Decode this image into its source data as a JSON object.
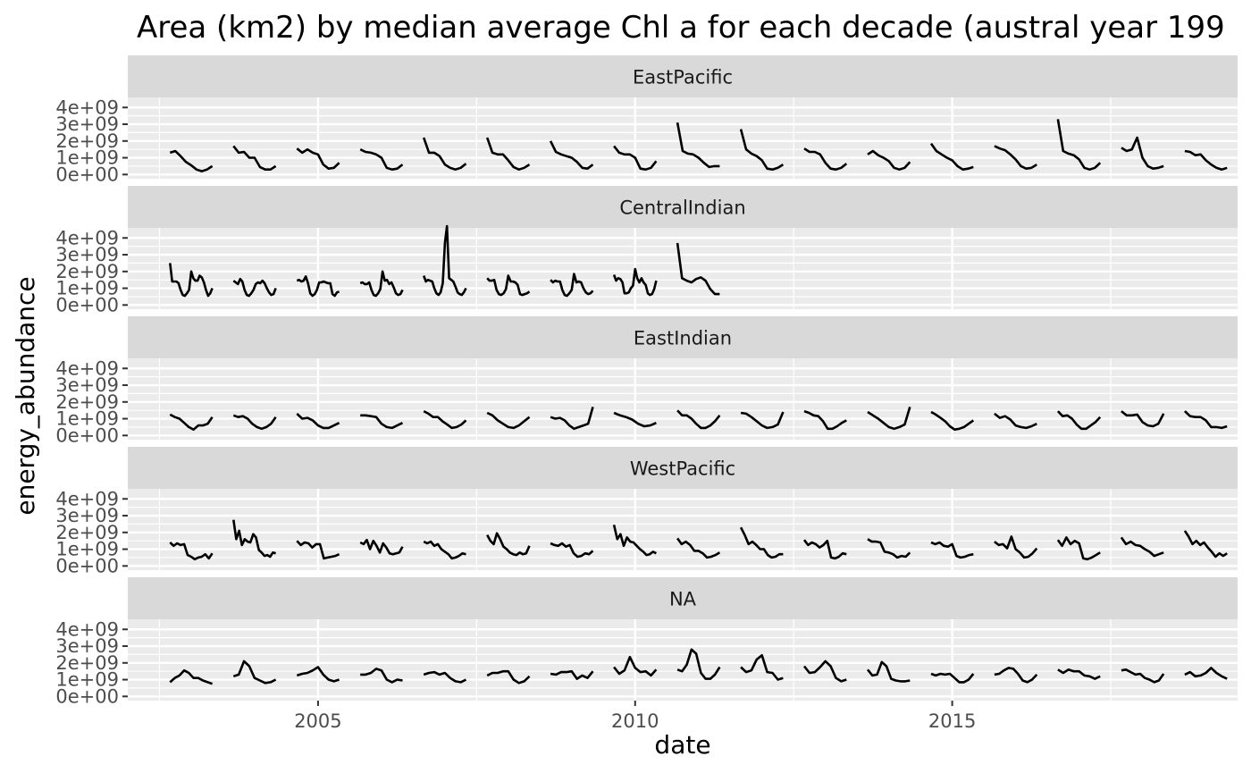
{
  "chart_data": {
    "type": "line",
    "title": "Area (km2) by median average Chl a for each decade (austral year 199",
    "xlabel": "date",
    "ylabel": "energy_abundance",
    "x_tick_labels": [
      "2005",
      "2010",
      "2015"
    ],
    "x_ticks": [
      2005,
      2010,
      2015
    ],
    "xlim": [
      2002.0,
      2019.5
    ],
    "ylim": [
      -250000000.0,
      4600000000.0
    ],
    "y_ticks": [
      0,
      1000000000.0,
      2000000000.0,
      3000000000.0,
      4000000000.0
    ],
    "y_tick_labels": [
      "0e+00",
      "1e+09",
      "2e+09",
      "3e+09",
      "4e+09"
    ],
    "grid": true,
    "legend": "none",
    "line_color": "#000000",
    "panel_background": "#ebebeb",
    "strip_background": "#d9d9d9",
    "season_start_years": [
      2002,
      2003,
      2004,
      2005,
      2006,
      2007,
      2008,
      2009,
      2010,
      2011,
      2012,
      2013,
      2014,
      2015,
      2016,
      2017,
      2018
    ],
    "season_start_month": 9,
    "panels": [
      {
        "name": "EastPacific",
        "seasons": [
          [
            1.3,
            1.4,
            1.1,
            0.75,
            0.55,
            0.3,
            0.2,
            0.3,
            0.5
          ],
          [
            1.7,
            1.3,
            1.35,
            1.0,
            1.0,
            0.45,
            0.3,
            0.3,
            0.5
          ],
          [
            1.55,
            1.3,
            1.5,
            1.3,
            1.2,
            0.6,
            0.35,
            0.4,
            0.7
          ],
          [
            1.5,
            1.35,
            1.3,
            1.2,
            1.0,
            0.4,
            0.3,
            0.35,
            0.6
          ],
          [
            2.2,
            1.3,
            1.3,
            1.1,
            0.6,
            0.4,
            0.3,
            0.4,
            0.65
          ],
          [
            2.2,
            1.3,
            1.2,
            1.2,
            0.85,
            0.45,
            0.3,
            0.4,
            0.6
          ],
          [
            2.0,
            1.35,
            1.2,
            1.1,
            1.0,
            0.75,
            0.4,
            0.35,
            0.6
          ],
          [
            1.7,
            1.3,
            1.2,
            1.2,
            1.0,
            0.35,
            0.3,
            0.4,
            0.8
          ],
          [
            3.1,
            1.4,
            1.25,
            1.2,
            1.0,
            0.7,
            0.45,
            0.5,
            0.5
          ],
          [
            2.7,
            1.5,
            1.25,
            1.1,
            0.85,
            0.35,
            0.3,
            0.4,
            0.6
          ],
          [
            1.55,
            1.35,
            1.35,
            1.2,
            0.7,
            0.35,
            0.3,
            0.4,
            0.65
          ],
          [
            1.2,
            1.4,
            1.15,
            1.0,
            0.8,
            0.4,
            0.3,
            0.4,
            0.75
          ],
          [
            1.85,
            1.4,
            1.2,
            1.0,
            0.85,
            0.5,
            0.3,
            0.35,
            0.45
          ],
          [
            1.7,
            1.55,
            1.45,
            1.2,
            0.9,
            0.5,
            0.35,
            0.4,
            0.6
          ],
          [
            3.3,
            1.4,
            1.25,
            1.15,
            0.9,
            0.4,
            0.3,
            0.4,
            0.7
          ],
          [
            1.6,
            1.4,
            1.5,
            2.2,
            1.0,
            0.5,
            0.35,
            0.4,
            0.5
          ],
          [
            1.4,
            1.35,
            1.15,
            1.2,
            0.85,
            0.6,
            0.4,
            0.3,
            0.4
          ]
        ]
      },
      {
        "name": "CentralIndian",
        "seasons": [
          [
            2.5,
            1.4,
            1.4,
            1.4,
            1.3,
            0.9,
            0.6,
            0.55,
            0.7,
            0.9,
            2.0,
            1.6,
            1.45,
            1.45,
            1.75,
            1.65,
            1.35,
            0.9,
            0.55,
            0.7,
            1.0
          ],
          [
            1.45,
            1.35,
            1.25,
            1.55,
            1.4,
            0.9,
            0.6,
            0.55,
            0.7,
            0.9,
            1.25,
            1.35,
            1.3,
            1.45,
            1.3,
            1.0,
            0.75,
            0.6,
            0.65,
            1.0
          ],
          [
            1.45,
            1.5,
            1.4,
            1.45,
            1.7,
            1.3,
            0.7,
            0.55,
            0.65,
            0.9,
            1.35,
            1.35,
            1.4,
            1.35,
            1.3,
            1.3,
            0.65,
            0.55,
            0.75,
            0.8
          ],
          [
            1.3,
            1.35,
            1.25,
            1.25,
            1.35,
            0.9,
            0.6,
            0.55,
            0.7,
            0.95,
            2.0,
            1.45,
            1.5,
            1.25,
            1.35,
            1.05,
            0.7,
            0.6,
            0.65,
            0.9
          ],
          [
            1.75,
            1.4,
            1.5,
            1.45,
            1.4,
            1.0,
            0.7,
            0.6,
            0.75,
            1.3,
            3.7,
            4.7,
            1.6,
            1.5,
            1.4,
            1.1,
            0.75,
            0.65,
            0.6,
            0.75,
            1.0
          ],
          [
            1.6,
            1.45,
            1.45,
            1.5,
            0.9,
            0.65,
            0.6,
            0.7,
            0.95,
            1.75,
            1.4,
            1.4,
            1.35,
            1.2,
            0.65,
            0.6,
            0.65,
            0.7,
            0.8
          ],
          [
            1.5,
            1.35,
            1.45,
            1.4,
            1.4,
            0.9,
            0.6,
            0.55,
            0.7,
            0.9,
            1.85,
            1.35,
            1.4,
            1.35,
            1.0,
            0.75,
            0.65,
            0.7,
            0.85
          ],
          [
            1.8,
            1.45,
            1.6,
            1.55,
            1.35,
            0.7,
            0.7,
            0.75,
            1.0,
            1.15,
            2.15,
            1.6,
            1.35,
            1.6,
            1.35,
            1.2,
            0.7,
            0.6,
            0.65,
            0.95,
            1.45
          ],
          [
            3.7,
            1.6,
            1.45,
            1.35,
            1.55,
            1.65,
            1.45,
            0.95,
            0.65,
            0.65
          ]
        ]
      },
      {
        "name": "EastIndian",
        "seasons": [
          [
            1.25,
            1.1,
            1.0,
            0.75,
            0.5,
            0.35,
            0.6,
            0.6,
            0.7,
            1.1
          ],
          [
            1.2,
            1.1,
            1.15,
            1.0,
            0.7,
            0.5,
            0.4,
            0.5,
            0.7,
            1.1
          ],
          [
            1.3,
            1.0,
            1.05,
            0.9,
            0.6,
            0.45,
            0.45,
            0.6,
            0.75
          ],
          [
            1.2,
            1.2,
            1.15,
            1.1,
            0.7,
            0.5,
            0.45,
            0.6,
            0.75
          ],
          [
            1.45,
            1.3,
            1.1,
            1.1,
            0.85,
            0.65,
            0.45,
            0.5,
            0.65,
            0.9
          ],
          [
            1.35,
            1.2,
            0.9,
            0.7,
            0.5,
            0.45,
            0.6,
            0.85,
            1.1
          ],
          [
            1.1,
            1.0,
            1.05,
            0.9,
            0.6,
            0.4,
            0.5,
            0.6,
            0.7,
            1.7
          ],
          [
            1.35,
            1.2,
            1.1,
            0.95,
            0.7,
            0.55,
            0.6,
            0.75
          ],
          [
            1.5,
            1.2,
            1.2,
            1.0,
            0.7,
            0.45,
            0.45,
            0.6,
            0.85,
            1.2
          ],
          [
            1.35,
            1.3,
            1.1,
            0.85,
            0.6,
            0.45,
            0.5,
            0.65,
            1.4
          ],
          [
            1.45,
            1.35,
            1.2,
            1.15,
            0.85,
            0.4,
            0.4,
            0.55,
            0.75,
            0.9
          ],
          [
            1.4,
            1.2,
            1.0,
            0.75,
            0.5,
            0.4,
            0.5,
            0.65,
            1.7
          ],
          [
            1.4,
            1.25,
            1.05,
            0.85,
            0.55,
            0.35,
            0.4,
            0.5,
            0.7,
            0.9
          ],
          [
            1.3,
            1.05,
            1.15,
            0.95,
            0.6,
            0.5,
            0.45,
            0.55,
            0.7
          ],
          [
            1.45,
            1.15,
            1.2,
            1.0,
            0.65,
            0.4,
            0.4,
            0.6,
            0.8,
            1.1
          ],
          [
            1.45,
            1.2,
            1.2,
            1.25,
            0.8,
            0.6,
            0.55,
            0.7,
            1.3
          ],
          [
            1.45,
            1.15,
            1.1,
            1.1,
            0.9,
            0.5,
            0.5,
            0.45,
            0.55
          ]
        ]
      },
      {
        "name": "WestPacific",
        "seasons": [
          [
            1.4,
            1.2,
            1.35,
            1.25,
            1.3,
            0.65,
            0.55,
            0.4,
            0.5,
            0.55,
            0.7,
            0.45,
            0.75
          ],
          [
            2.75,
            1.6,
            2.1,
            1.25,
            1.6,
            1.45,
            1.4,
            1.9,
            1.7,
            0.95,
            0.8,
            0.6,
            0.65,
            0.55,
            0.8,
            0.75
          ],
          [
            1.5,
            1.25,
            1.4,
            1.35,
            1.1,
            1.3,
            1.3,
            0.45,
            0.5,
            0.55,
            0.6,
            0.7
          ],
          [
            1.4,
            1.3,
            1.55,
            1.0,
            1.5,
            1.2,
            0.8,
            1.35,
            1.1,
            0.75,
            0.7,
            0.75,
            0.8,
            1.15
          ],
          [
            1.45,
            1.35,
            1.45,
            1.2,
            1.3,
            1.0,
            0.85,
            0.7,
            0.45,
            0.5,
            0.6,
            0.75,
            0.7
          ],
          [
            1.85,
            1.5,
            1.3,
            1.95,
            1.6,
            1.15,
            1.0,
            0.8,
            0.7,
            0.65,
            0.8,
            0.7,
            0.75,
            1.2
          ],
          [
            1.35,
            1.25,
            1.2,
            1.35,
            1.15,
            1.25,
            0.75,
            0.55,
            0.6,
            0.75,
            0.7,
            0.9
          ],
          [
            2.45,
            1.6,
            1.9,
            1.2,
            1.7,
            1.45,
            1.4,
            1.2,
            1.0,
            0.85,
            0.65,
            0.7,
            0.85,
            0.75
          ],
          [
            1.65,
            1.3,
            1.45,
            1.25,
            0.9,
            0.9,
            0.75,
            0.5,
            0.55,
            0.65,
            0.8
          ],
          [
            2.3,
            1.85,
            1.3,
            1.45,
            1.25,
            1.0,
            1.0,
            0.65,
            0.5,
            0.55,
            0.7,
            0.7
          ],
          [
            1.55,
            1.25,
            1.4,
            1.3,
            1.1,
            1.25,
            1.5,
            0.5,
            0.45,
            0.55,
            0.75,
            0.7
          ],
          [
            1.6,
            1.45,
            1.45,
            1.4,
            0.85,
            0.8,
            0.7,
            0.5,
            0.6,
            0.55,
            0.8
          ],
          [
            1.4,
            1.3,
            1.4,
            1.2,
            1.15,
            1.3,
            0.6,
            0.5,
            0.55,
            0.65,
            0.7
          ],
          [
            1.45,
            1.25,
            1.3,
            1.05,
            1.75,
            1.0,
            0.8,
            0.5,
            0.55,
            0.75,
            1.05
          ],
          [
            1.55,
            1.2,
            1.7,
            1.3,
            1.5,
            1.35,
            0.45,
            0.4,
            0.5,
            0.65,
            0.8
          ],
          [
            1.7,
            1.3,
            1.45,
            1.25,
            1.2,
            1.0,
            0.85,
            0.6,
            0.7,
            0.8
          ],
          [
            2.1,
            1.75,
            1.3,
            1.5,
            1.25,
            1.4,
            1.1,
            0.85,
            0.55,
            0.75,
            0.6,
            0.75
          ]
        ]
      },
      {
        "name": "NA",
        "seasons": [
          [
            0.85,
            1.1,
            1.25,
            1.55,
            1.4,
            1.1,
            1.1,
            0.95,
            0.85,
            0.75
          ],
          [
            1.2,
            1.3,
            2.1,
            1.8,
            1.1,
            0.95,
            0.8,
            0.85,
            1.0
          ],
          [
            1.25,
            1.35,
            1.4,
            1.55,
            1.75,
            1.3,
            1.0,
            0.9,
            1.0
          ],
          [
            1.3,
            1.3,
            1.4,
            1.65,
            1.55,
            1.0,
            0.85,
            1.0,
            0.95
          ],
          [
            1.3,
            1.4,
            1.45,
            1.3,
            1.4,
            1.1,
            0.9,
            0.85,
            1.0
          ],
          [
            1.25,
            1.4,
            1.4,
            1.5,
            1.5,
            1.0,
            0.8,
            0.9,
            1.2
          ],
          [
            1.35,
            1.3,
            1.45,
            1.45,
            1.5,
            1.05,
            1.25,
            1.1,
            1.5
          ],
          [
            1.75,
            1.35,
            1.55,
            2.35,
            1.7,
            1.45,
            1.5,
            1.25,
            1.6
          ],
          [
            1.6,
            1.5,
            1.9,
            2.8,
            2.55,
            1.4,
            1.05,
            1.05,
            1.3,
            1.75
          ],
          [
            1.75,
            1.45,
            1.55,
            2.2,
            2.45,
            1.45,
            1.4,
            1.0,
            1.1
          ],
          [
            1.8,
            1.4,
            1.45,
            1.75,
            2.1,
            1.8,
            1.1,
            0.9,
            1.0
          ],
          [
            1.6,
            1.25,
            1.3,
            2.05,
            1.8,
            1.05,
            0.95,
            0.9,
            0.9,
            0.95
          ],
          [
            1.35,
            1.25,
            1.35,
            1.3,
            1.35,
            1.1,
            0.85,
            0.85,
            1.0,
            1.35
          ],
          [
            1.3,
            1.35,
            1.55,
            1.7,
            1.65,
            1.35,
            0.95,
            0.85,
            1.0,
            1.3
          ],
          [
            1.6,
            1.4,
            1.6,
            1.5,
            1.5,
            1.25,
            1.2,
            1.05,
            1.2
          ],
          [
            1.55,
            1.6,
            1.45,
            1.3,
            1.35,
            1.1,
            1.0,
            0.85,
            0.95,
            1.35
          ],
          [
            1.3,
            1.45,
            1.2,
            1.25,
            1.4,
            1.7,
            1.4,
            1.2,
            1.05
          ]
        ]
      }
    ]
  }
}
